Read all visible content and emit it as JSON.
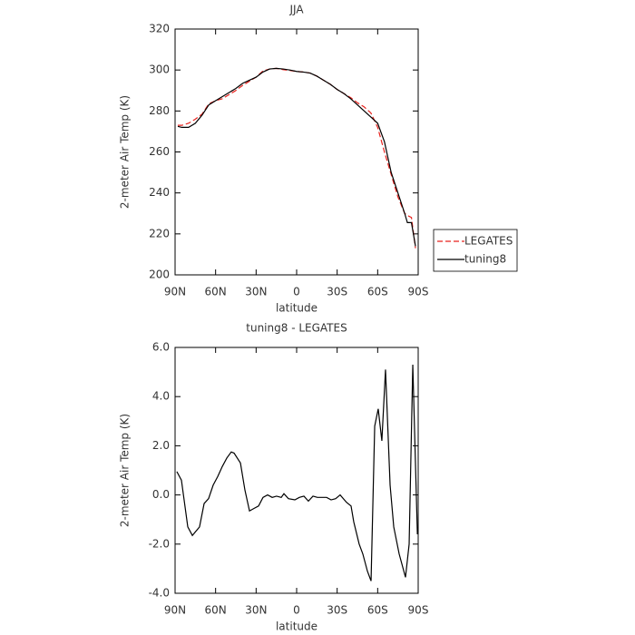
{
  "chart_data": [
    {
      "type": "line",
      "title": "JJA",
      "x_label": "latitude",
      "y_label": "2-meter Air Temp (K)",
      "x": [
        88,
        85,
        80,
        75,
        70,
        65,
        60,
        55,
        50,
        45,
        40,
        35,
        30,
        25,
        20,
        15,
        10,
        5,
        0,
        -5,
        -10,
        -15,
        -20,
        -25,
        -30,
        -35,
        -40,
        -45,
        -50,
        -55,
        -60,
        -65,
        -70,
        -75,
        -80,
        -82,
        -85,
        -88
      ],
      "series": [
        {
          "name": "LEGATES",
          "color": "#e8211c",
          "linestyle": "dashed",
          "values": [
            273,
            273,
            274,
            276,
            278.5,
            283.5,
            285,
            286,
            288,
            290,
            292.5,
            294.5,
            296.5,
            299.5,
            300.5,
            300.8,
            300.2,
            299.8,
            299.3,
            299,
            298.5,
            297,
            295,
            293,
            290.5,
            288.5,
            286.5,
            284,
            282,
            279,
            272,
            260,
            249,
            238,
            230,
            229,
            228,
            213
          ]
        },
        {
          "name": "tuning8",
          "color": "#000000",
          "linestyle": "solid",
          "values": [
            272.5,
            272,
            272,
            274,
            278,
            283,
            285,
            287,
            289,
            291,
            293.5,
            295,
            296.5,
            299,
            300.5,
            300.8,
            300.5,
            300,
            299.3,
            299,
            298.5,
            297,
            295,
            293,
            290.5,
            288.5,
            286,
            283,
            280,
            277,
            274,
            265,
            250,
            240,
            230,
            225.5,
            225.5,
            214
          ]
        }
      ],
      "xlim": [
        90,
        -90
      ],
      "xticks": [
        {
          "value": 90,
          "label": "90N"
        },
        {
          "value": 60,
          "label": "60N"
        },
        {
          "value": 30,
          "label": "30N"
        },
        0,
        {
          "value": -30,
          "label": "30S"
        },
        {
          "value": -60,
          "label": "60S"
        },
        {
          "value": -90,
          "label": "90S"
        }
      ],
      "ylim": [
        200,
        320
      ],
      "yticks": [
        200,
        220,
        240,
        260,
        280,
        300,
        320
      ],
      "legend": "right"
    },
    {
      "type": "line",
      "title": "tuning8 - LEGATES",
      "x_label": "latitude",
      "y_label": "2-meter Air Temp (K)",
      "x": [
        88.7,
        85.3,
        80.6,
        77.2,
        71.9,
        68.5,
        65.2,
        61.8,
        58.4,
        55.1,
        51.7,
        48.4,
        46.3,
        41.6,
        38.3,
        34.9,
        31.6,
        28.2,
        24.9,
        21.5,
        18.1,
        14.9,
        11.4,
        9.4,
        6.1,
        1.3,
        -2.0,
        -5.4,
        -8.7,
        -12.1,
        -15.4,
        -18.8,
        -22.2,
        -25.5,
        -28.9,
        -32.2,
        -36.9,
        -40.3,
        -42.3,
        -46.3,
        -49.0,
        -52.4,
        -55.1,
        -57.8,
        -60.4,
        -63.1,
        -65.8,
        -69.2,
        -71.9,
        -75.9,
        -80.6,
        -83.3,
        -86.0,
        -89.4
      ],
      "color": "#000000",
      "values": [
        0.95,
        0.6,
        -1.3,
        -1.65,
        -1.3,
        -0.35,
        -0.15,
        0.4,
        0.75,
        1.15,
        1.5,
        1.75,
        1.7,
        1.3,
        0.2,
        -0.65,
        -0.55,
        -0.45,
        -0.1,
        0,
        -0.1,
        -0.05,
        -0.1,
        0.05,
        -0.15,
        -0.2,
        -0.1,
        -0.05,
        -0.25,
        -0.05,
        -0.1,
        -0.1,
        -0.1,
        -0.2,
        -0.15,
        0,
        -0.3,
        -0.45,
        -1.1,
        -2.0,
        -2.4,
        -3.1,
        -3.5,
        2.8,
        3.5,
        2.2,
        5.1,
        0.4,
        -1.3,
        -2.4,
        -3.35,
        -2.0,
        5.3,
        -1.6
      ],
      "xlim": [
        90,
        -90
      ],
      "xticks": [
        {
          "value": 90,
          "label": "90N"
        },
        {
          "value": 60,
          "label": "60N"
        },
        {
          "value": 30,
          "label": "30N"
        },
        0,
        {
          "value": -30,
          "label": "30S"
        },
        {
          "value": -60,
          "label": "60S"
        },
        {
          "value": -90,
          "label": "90S"
        }
      ],
      "ylim": [
        -4,
        6
      ],
      "yticks": [
        {
          "value": -4,
          "label": "-4.0"
        },
        {
          "value": -2,
          "label": "-2.0"
        },
        {
          "value": 0,
          "label": "0.0"
        },
        {
          "value": 2,
          "label": "2.0"
        },
        {
          "value": 4,
          "label": "4.0"
        },
        {
          "value": 6,
          "label": "6.0"
        }
      ]
    }
  ]
}
